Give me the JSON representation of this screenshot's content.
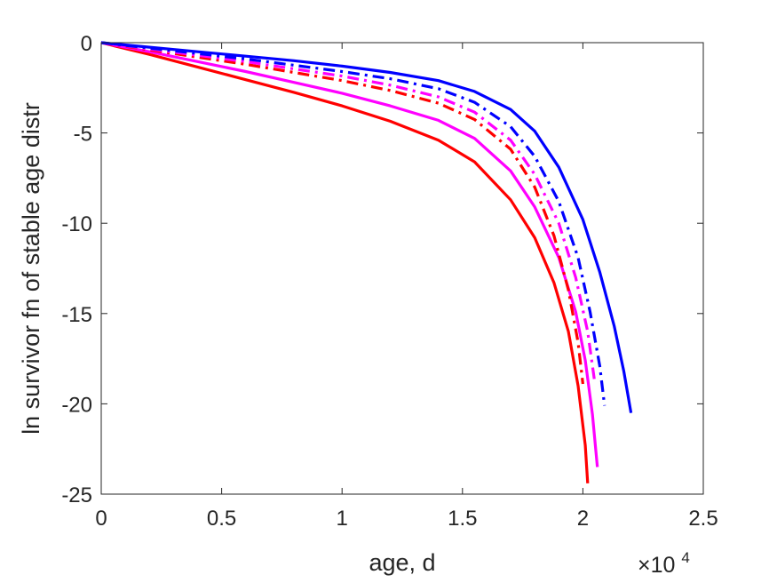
{
  "chart_data": {
    "type": "line",
    "xlabel": "age, d",
    "ylabel": "ln survivor fn of stable age distr",
    "x_exponent_label": "×10",
    "x_exponent_power": "4",
    "xlim": [
      0,
      2.5
    ],
    "ylim": [
      -25,
      0
    ],
    "x_scale_factor": 10000,
    "xticks": [
      0,
      0.5,
      1,
      1.5,
      2,
      2.5
    ],
    "xtick_labels": [
      "0",
      "0.5",
      "1",
      "1.5",
      "2",
      "2.5"
    ],
    "yticks": [
      0,
      -5,
      -10,
      -15,
      -20,
      -25
    ],
    "ytick_labels": [
      "0",
      "-5",
      "-10",
      "-15",
      "-20",
      "-25"
    ],
    "grid": false,
    "series": [
      {
        "color": "#ff0000",
        "style": "solid",
        "x": [
          0,
          0.2,
          0.4,
          0.6,
          0.8,
          1.0,
          1.2,
          1.4,
          1.55,
          1.7,
          1.8,
          1.88,
          1.94,
          1.98,
          2.01,
          2.02
        ],
        "y": [
          0,
          -0.65,
          -1.35,
          -2.05,
          -2.75,
          -3.5,
          -4.35,
          -5.4,
          -6.6,
          -8.7,
          -10.8,
          -13.3,
          -16.0,
          -19.0,
          -22.3,
          -24.4
        ]
      },
      {
        "color": "#ff00ff",
        "style": "solid",
        "x": [
          0,
          0.2,
          0.4,
          0.6,
          0.8,
          1.0,
          1.2,
          1.4,
          1.55,
          1.7,
          1.8,
          1.9,
          1.97,
          2.01,
          2.04,
          2.06
        ],
        "y": [
          0,
          -0.5,
          -1.05,
          -1.6,
          -2.2,
          -2.8,
          -3.5,
          -4.3,
          -5.3,
          -7.1,
          -9.1,
          -11.9,
          -14.9,
          -17.6,
          -20.6,
          -23.5
        ]
      },
      {
        "color": "#ff0000",
        "style": "dashdot",
        "x": [
          0,
          0.2,
          0.4,
          0.6,
          0.8,
          1.0,
          1.2,
          1.4,
          1.55,
          1.7,
          1.8,
          1.88,
          1.94,
          1.98,
          2.0
        ],
        "y": [
          0,
          -0.4,
          -0.8,
          -1.2,
          -1.65,
          -2.1,
          -2.65,
          -3.35,
          -4.25,
          -5.9,
          -8.0,
          -10.7,
          -13.7,
          -16.6,
          -18.9
        ]
      },
      {
        "color": "#ff00ff",
        "style": "dashdot",
        "x": [
          0,
          0.2,
          0.4,
          0.6,
          0.8,
          1.0,
          1.2,
          1.4,
          1.55,
          1.7,
          1.8,
          1.9,
          1.97,
          2.02,
          2.05
        ],
        "y": [
          0,
          -0.35,
          -0.7,
          -1.05,
          -1.45,
          -1.85,
          -2.35,
          -3.0,
          -3.85,
          -5.4,
          -7.3,
          -10.0,
          -13.0,
          -16.0,
          -18.9
        ]
      },
      {
        "color": "#0000ff",
        "style": "dashdot",
        "x": [
          0,
          0.2,
          0.4,
          0.6,
          0.8,
          1.0,
          1.2,
          1.4,
          1.55,
          1.7,
          1.8,
          1.9,
          1.98,
          2.03,
          2.07,
          2.09
        ],
        "y": [
          0,
          -0.3,
          -0.6,
          -0.9,
          -1.25,
          -1.6,
          -2.0,
          -2.55,
          -3.3,
          -4.65,
          -6.3,
          -8.8,
          -11.9,
          -14.9,
          -17.9,
          -20.1
        ]
      },
      {
        "color": "#0000ff",
        "style": "solid",
        "x": [
          0,
          0.2,
          0.4,
          0.6,
          0.8,
          1.0,
          1.2,
          1.4,
          1.55,
          1.7,
          1.8,
          1.9,
          2.0,
          2.07,
          2.13,
          2.17,
          2.2
        ],
        "y": [
          0,
          -0.25,
          -0.5,
          -0.75,
          -1.0,
          -1.3,
          -1.65,
          -2.1,
          -2.7,
          -3.7,
          -4.9,
          -6.9,
          -9.8,
          -12.7,
          -15.7,
          -18.2,
          -20.5
        ]
      }
    ]
  }
}
